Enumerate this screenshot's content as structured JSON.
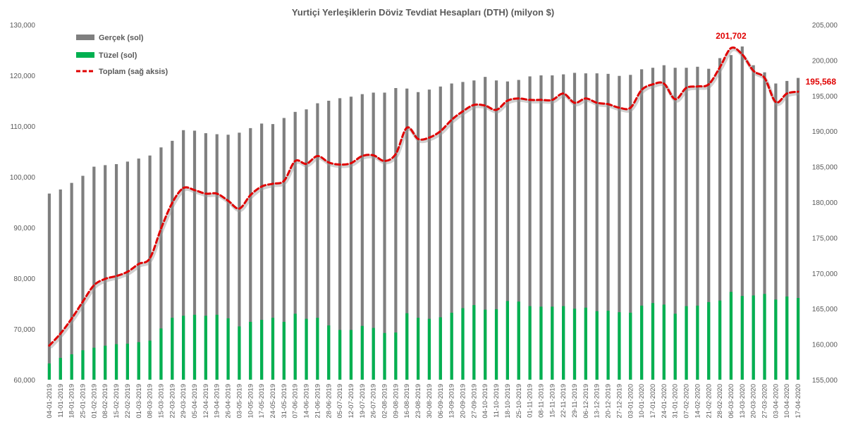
{
  "chart_data": {
    "type": "bar",
    "title": "Yurtiçi Yerleşiklerin Döviz Tevdiat Hesapları (DTH) (milyon $)",
    "xlabel": "",
    "ylabel": "",
    "ylim_left": [
      60000,
      130000
    ],
    "ylim_right": [
      155000,
      205000
    ],
    "left_ticks": [
      "60,000",
      "70,000",
      "80,000",
      "90,000",
      "100,000",
      "110,000",
      "120,000",
      "130,000"
    ],
    "right_ticks": [
      "155,000",
      "160,000",
      "165,000",
      "170,000",
      "175,000",
      "180,000",
      "185,000",
      "190,000",
      "195,000",
      "200,000",
      "205,000"
    ],
    "categories": [
      "04-01-2019",
      "11-01-2019",
      "18-01-2019",
      "25-01-2019",
      "01-02-2019",
      "08-02-2019",
      "15-02-2019",
      "22-02-2019",
      "01-03-2019",
      "08-03-2019",
      "15-03-2019",
      "22-03-2019",
      "29-03-2019",
      "05-04-2019",
      "12-04-2019",
      "19-04-2019",
      "26-04-2019",
      "03-05-2019",
      "10-05-2019",
      "17-05-2019",
      "24-05-2019",
      "31-05-2019",
      "07-06-2019",
      "14-06-2019",
      "21-06-2019",
      "28-06-2019",
      "05-07-2019",
      "12-07-2019",
      "19-07-2019",
      "26-07-2019",
      "02-08-2019",
      "09-08-2019",
      "16-08-2019",
      "23-08-2019",
      "30-08-2019",
      "06-09-2019",
      "13-09-2019",
      "20-09-2019",
      "27-09-2019",
      "04-10-2019",
      "11-10-2019",
      "18-10-2019",
      "25-10-2019",
      "01-11-2019",
      "08-11-2019",
      "15-11-2019",
      "22-11-2019",
      "29-11-2019",
      "06-12-2019",
      "13-12-2019",
      "20-12-2019",
      "27-12-2019",
      "03-01-2020",
      "10-01-2020",
      "17-01-2020",
      "24-01-2020",
      "31-01-2020",
      "07-02-2020",
      "14-02-2020",
      "21-02-2020",
      "28-02-2020",
      "06-03-2020",
      "13-03-2020",
      "20-03-2020",
      "27-03-2020",
      "03-04-2020",
      "10-04-2020",
      "17-04-2020"
    ],
    "x_labels_shown": [
      "04-01-2019",
      "11-01-2019",
      "18-01-2019",
      "25-01-2019",
      "01-02-2019",
      "08-02-2019",
      "15-02-2019",
      "22-02-2019",
      "01-03-2019",
      "08-03-2019",
      "15-03-2019",
      "22-03-2019",
      "29-03-2019",
      "05-04-2019",
      "12-04-2019",
      "19-04-2019",
      "26-04-2019",
      "03-05-2019",
      "10-05-2019",
      "17-05-2019",
      "24-05-2019",
      "31-05-2019",
      "07-06-2019",
      "14-06-2019",
      "21-06-2019",
      "28-06-2019",
      "05-07-2019",
      "12-07-2019",
      "19-07-2019",
      "26-07-2019",
      "02-08-2019",
      "09-08-2019",
      "16-08-2019",
      "23-08-2019",
      "30-08-2019",
      "06-09-2019",
      "13-09-2019",
      "20-09-2019",
      "27-09-2019",
      "04-10-2019",
      "11-10-2019",
      "18-10-2019",
      "25-10-2019",
      "01-11-2019",
      "08-11-2019",
      "15-11-2019",
      "22-11-2019",
      "29-11-2019",
      "06-12-2019",
      "13-12-2019",
      "20-12-2019",
      "27-12-2019",
      "03-01-2020",
      "10-01-2020",
      "17-01-2020",
      "24-01-2020",
      "31-01-2020",
      "07-02-2020",
      "14-02-2020",
      "21-02-2020",
      "28-02-2020",
      "06-03-2020",
      "13-03-2020",
      "20-03-2020",
      "27-03-2020",
      "03-04-2020",
      "10-04-2020",
      "17-04-2020"
    ],
    "series": [
      {
        "name": "Gerçek (sol)",
        "type": "bar",
        "axis": "left",
        "color": "#7f7f7f",
        "values": [
          96700,
          97500,
          98800,
          100200,
          102000,
          102300,
          102500,
          103000,
          103600,
          104200,
          105800,
          107100,
          109200,
          109100,
          108600,
          108400,
          108300,
          108700,
          109600,
          110500,
          110400,
          111600,
          112800,
          113300,
          114500,
          115000,
          115500,
          115800,
          116300,
          116600,
          116600,
          117500,
          117400,
          116700,
          117200,
          117800,
          118400,
          118700,
          119000,
          119700,
          119000,
          118800,
          119100,
          119800,
          120000,
          120000,
          120200,
          120500,
          120400,
          120400,
          120300,
          119900,
          120100,
          121200,
          121500,
          122000,
          121500,
          121500,
          121700,
          121300,
          123400,
          124000,
          125700,
          122000,
          120600,
          118400,
          118900,
          119500
        ]
      },
      {
        "name": "Tüzel (sol)",
        "type": "bar",
        "axis": "left",
        "color": "#00b050",
        "values": [
          63200,
          64300,
          65000,
          65800,
          66300,
          66700,
          67000,
          67100,
          67400,
          67700,
          70100,
          72200,
          72600,
          72800,
          72600,
          72800,
          72100,
          70500,
          71400,
          71800,
          72200,
          71400,
          73000,
          72000,
          72200,
          70700,
          69800,
          69800,
          70600,
          70200,
          69200,
          69300,
          73100,
          72200,
          72000,
          72300,
          73200,
          74100,
          74700,
          73800,
          73900,
          75500,
          75400,
          74500,
          74400,
          74400,
          74500,
          74000,
          74200,
          73500,
          73600,
          73300,
          73200,
          74600,
          75100,
          74800,
          73000,
          74500,
          74600,
          75300,
          75600,
          77300,
          76500,
          76600,
          76900,
          75800,
          76400,
          76100
        ]
      },
      {
        "name": "Toplam (sağ aksis)",
        "type": "line",
        "axis": "right",
        "color": "#e00000",
        "values": [
          159800,
          161500,
          163600,
          166000,
          168300,
          169200,
          169600,
          170200,
          171300,
          172100,
          176300,
          179900,
          182000,
          181700,
          181200,
          181200,
          180200,
          179100,
          181000,
          182200,
          182600,
          183000,
          185800,
          185400,
          186500,
          185600,
          185300,
          185500,
          186500,
          186600,
          185800,
          186800,
          190500,
          188900,
          189100,
          190000,
          191600,
          192800,
          193700,
          193600,
          193000,
          194300,
          194600,
          194400,
          194400,
          194400,
          195300,
          194000,
          194600,
          194000,
          193800,
          193300,
          193300,
          195800,
          196600,
          196700,
          194500,
          196100,
          196300,
          196600,
          199000,
          201702,
          200800,
          198500,
          197500,
          194100,
          195300,
          195568
        ]
      }
    ],
    "legend": {
      "position": "top-left",
      "entries": [
        {
          "label": "Gerçek (sol)",
          "color": "#7f7f7f"
        },
        {
          "label": "Tüzel (sol)",
          "color": "#00b050"
        },
        {
          "label": "Toplam (sağ aksis)",
          "color": "#e00000"
        }
      ]
    },
    "annotations": [
      {
        "text": "201,702",
        "x": "06-03-2020",
        "series": "Toplam (sağ aksis)"
      },
      {
        "text": "195,568",
        "x": "17-04-2020",
        "series": "Toplam (sağ aksis)"
      }
    ],
    "grid": false
  }
}
